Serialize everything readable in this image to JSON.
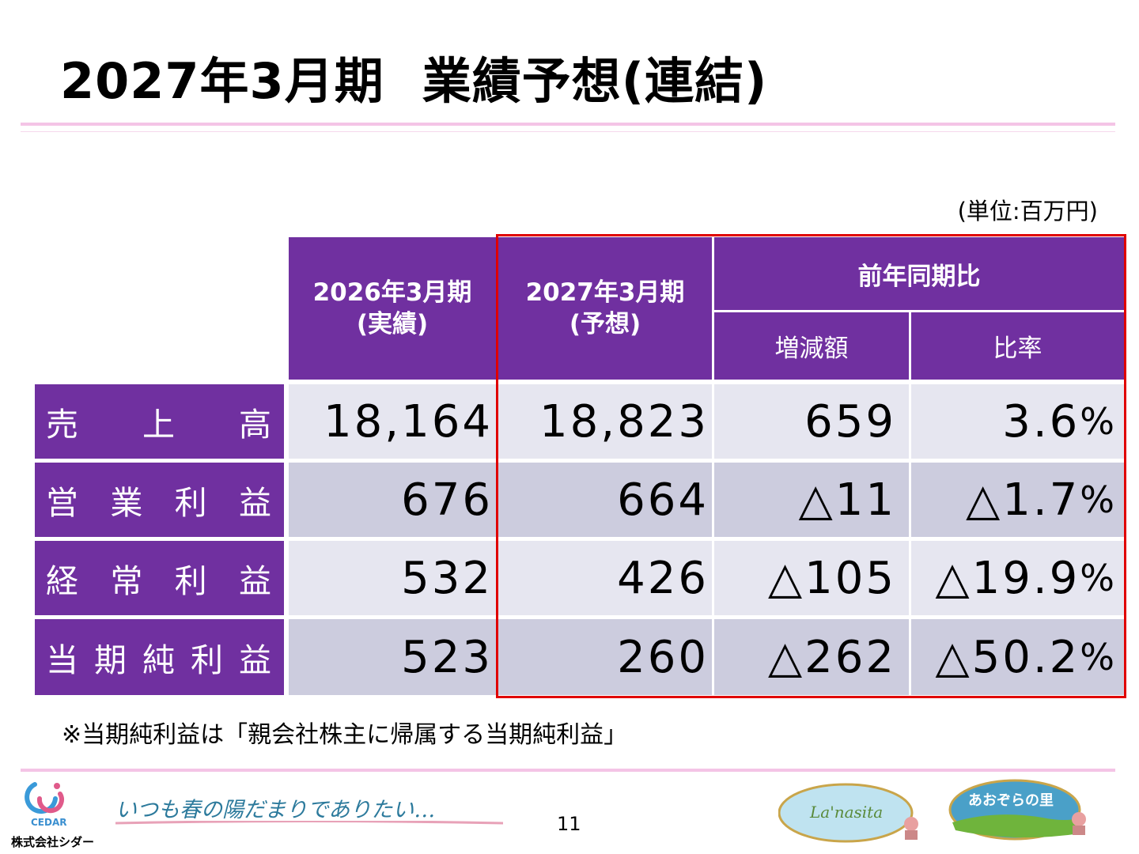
{
  "title": {
    "year_label": "2027年3月期",
    "subject": "業績予想(連結)"
  },
  "unit": "(単位:百万円)",
  "table": {
    "col_prev": {
      "line1": "2026年3月期",
      "line2": "(実績)"
    },
    "col_forecast": {
      "line1": "2027年3月期",
      "line2": "(予想)"
    },
    "col_yoy": "前年同期比",
    "col_diff": "増減額",
    "col_ratio": "比率",
    "rows": [
      {
        "label": "売上高",
        "prev": "18,164",
        "forecast": "18,823",
        "diff": "659",
        "ratio": "3.6",
        "pct": "%"
      },
      {
        "label": "営業利益",
        "prev": "676",
        "forecast": "664",
        "diff": "△11",
        "ratio": "△1.7",
        "pct": "%"
      },
      {
        "label": "経常利益",
        "prev": "532",
        "forecast": "426",
        "diff": "△105",
        "ratio": "△19.9",
        "pct": "%"
      },
      {
        "label": "当期純利益",
        "prev": "523",
        "forecast": "260",
        "diff": "△262",
        "ratio": "△50.2",
        "pct": "%"
      }
    ]
  },
  "note": "※当期純利益は「親会社株主に帰属する当期純利益」",
  "page_number": "11",
  "footer": {
    "logo_text": "CEDAR",
    "company": "株式会社シダー",
    "slogan": "いつも春の陽だまりでありたい…",
    "badge1_text": "La'nasita",
    "badge2_text": "あおぞらの里"
  },
  "colors": {
    "header_purple": "#7030a0",
    "row_light": "#e6e6f0",
    "row_dark": "#ccccde",
    "highlight_border": "#e00000",
    "rule_pink": "#f4c4e6"
  }
}
